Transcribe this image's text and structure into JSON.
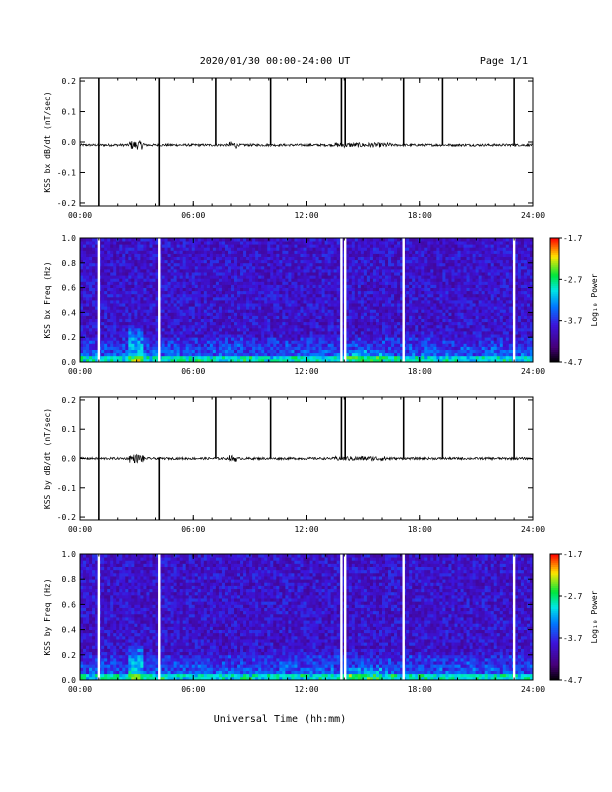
{
  "header": {
    "title": "2020/01/30  00:00-24:00 UT",
    "page": "Page 1/1"
  },
  "x_axis_title": "Universal Time (hh:mm)",
  "chart_data": [
    {
      "type": "line",
      "name": "bx-timeseries",
      "ylabel": "KSS bx dB/dt (nT/sec)",
      "xlim": [
        0,
        24
      ],
      "ylim": [
        -0.21,
        0.21
      ],
      "x_ticks": [
        "00:00",
        "06:00",
        "12:00",
        "18:00",
        "24:00"
      ],
      "y_ticks": [
        "0.2",
        "0.1",
        "0.0",
        "-0.1",
        "-0.2"
      ],
      "baseline": -0.01,
      "spikes": [
        {
          "t": 1.0,
          "ymin": -0.21,
          "ymax": 0.21
        },
        {
          "t": 4.2,
          "ymin": -0.21,
          "ymax": 0.21
        },
        {
          "t": 7.2,
          "ymin": -0.01,
          "ymax": 0.21
        },
        {
          "t": 10.1,
          "ymin": -0.01,
          "ymax": 0.21
        },
        {
          "t": 13.85,
          "ymin": -0.01,
          "ymax": 0.21
        },
        {
          "t": 14.05,
          "ymin": -0.01,
          "ymax": 0.21
        },
        {
          "t": 17.15,
          "ymin": -0.01,
          "ymax": 0.21
        },
        {
          "t": 19.2,
          "ymin": -0.01,
          "ymax": 0.21
        },
        {
          "t": 23.0,
          "ymin": -0.01,
          "ymax": 0.21
        }
      ]
    },
    {
      "type": "heatmap",
      "name": "bx-spectrogram",
      "ylabel": "KSS bx Freq (Hz)",
      "xlim": [
        0,
        24
      ],
      "ylim": [
        0,
        1.0
      ],
      "x_ticks": [
        "00:00",
        "06:00",
        "12:00",
        "18:00",
        "24:00"
      ],
      "y_ticks": [
        "1.0",
        "0.8",
        "0.6",
        "0.4",
        "0.2",
        "0.0"
      ],
      "colorbar": {
        "label": "Log₁₀ Power",
        "ticks": [
          "-1.7",
          "-2.7",
          "-3.7",
          "-4.7"
        ],
        "range": [
          -4.7,
          -1.7
        ]
      },
      "gaps": [
        1.0,
        4.2,
        13.85,
        14.05,
        17.15,
        23.0
      ]
    },
    {
      "type": "line",
      "name": "by-timeseries",
      "ylabel": "KSS by dB/dt (nT/sec)",
      "xlim": [
        0,
        24
      ],
      "ylim": [
        -0.21,
        0.21
      ],
      "x_ticks": [
        "00:00",
        "06:00",
        "12:00",
        "18:00",
        "24:00"
      ],
      "y_ticks": [
        "0.2",
        "0.1",
        "0.0",
        "-0.1",
        "-0.2"
      ],
      "baseline": 0.0,
      "spikes": [
        {
          "t": 1.0,
          "ymin": -0.21,
          "ymax": 0.21
        },
        {
          "t": 4.2,
          "ymin": -0.21,
          "ymax": 0.0
        },
        {
          "t": 7.2,
          "ymin": 0.0,
          "ymax": 0.21
        },
        {
          "t": 10.1,
          "ymin": 0.0,
          "ymax": 0.21
        },
        {
          "t": 13.85,
          "ymin": 0.0,
          "ymax": 0.21
        },
        {
          "t": 14.05,
          "ymin": 0.0,
          "ymax": 0.21
        },
        {
          "t": 17.15,
          "ymin": 0.0,
          "ymax": 0.21
        },
        {
          "t": 19.2,
          "ymin": 0.0,
          "ymax": 0.21
        },
        {
          "t": 23.0,
          "ymin": 0.0,
          "ymax": 0.21
        }
      ]
    },
    {
      "type": "heatmap",
      "name": "by-spectrogram",
      "ylabel": "KSS by Freq (Hz)",
      "xlim": [
        0,
        24
      ],
      "ylim": [
        0,
        1.0
      ],
      "x_ticks": [
        "00:00",
        "06:00",
        "12:00",
        "18:00",
        "24:00"
      ],
      "y_ticks": [
        "1.0",
        "0.8",
        "0.6",
        "0.4",
        "0.2",
        "0.0"
      ],
      "colorbar": {
        "label": "Log₁₀ Power",
        "ticks": [
          "-1.7",
          "-2.7",
          "-3.7",
          "-4.7"
        ],
        "range": [
          -4.7,
          -1.7
        ]
      },
      "gaps": [
        1.0,
        4.2,
        13.85,
        14.05,
        17.15,
        23.0
      ]
    }
  ]
}
